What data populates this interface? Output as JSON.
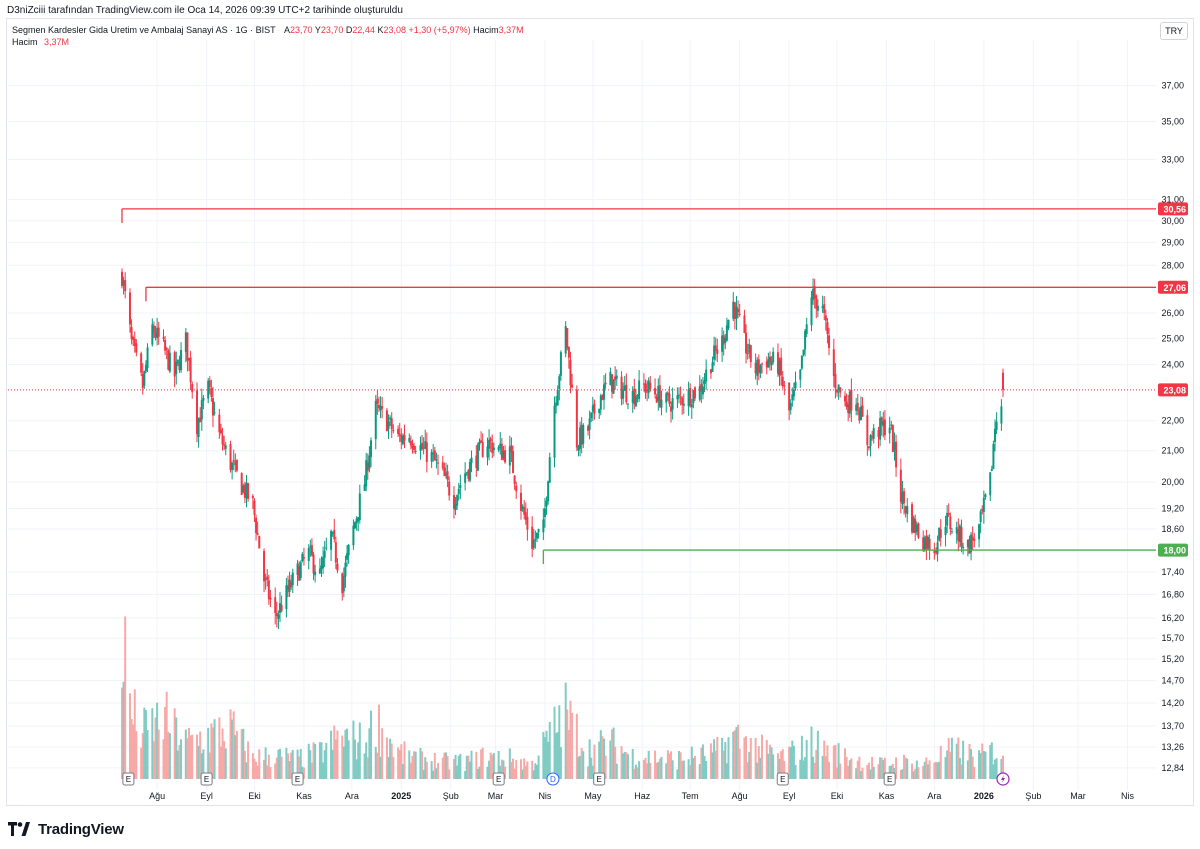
{
  "credit": "D3niZciii tarafından TradingView.com ile Oca 14, 2026 09:39 UTC+2 tarihinde oluşturuldu",
  "legend": {
    "symbol": "Segmen Kardesler Gida Uretim ve Ambalaj Sanayi AS · 1G · BIST",
    "open_label": "A",
    "open": "23,70",
    "high_label": "Y",
    "high": "23,70",
    "low_label": "D",
    "low": "22,44",
    "close_label": "K",
    "close": "23,08",
    "change": "+1,30 (+5,97%)",
    "volume_label": "Hacim",
    "volume": "3,37M",
    "volume_series_label": "Hacim",
    "volume_series_value": "3,37M"
  },
  "currency": "TRY",
  "brand": "TradingView",
  "colors": {
    "up": "#089981",
    "down": "#f23645",
    "resistance": "#f23645",
    "support": "#4caf50",
    "grid": "#f0f3fa",
    "vol_up": "#80cbc4",
    "vol_down": "#f7a9a7"
  },
  "chart_data": {
    "type": "candlestick",
    "x_axis_labels": [
      "Ağu",
      "Eyl",
      "Eki",
      "Kas",
      "Ara",
      "2025",
      "Şub",
      "Mar",
      "Nis",
      "May",
      "Haz",
      "Tem",
      "Ağu",
      "Eyl",
      "Eki",
      "Kas",
      "Ara",
      "2026",
      "Şub",
      "Mar",
      "Nis"
    ],
    "y_axis_labels": [
      "37,00",
      "35,00",
      "33,00",
      "31,00",
      "30,00",
      "29,00",
      "28,00",
      "26,00",
      "25,00",
      "24,00",
      "22,00",
      "21,00",
      "20,00",
      "19,20",
      "18,60",
      "17,40",
      "16,80",
      "16,20",
      "15,70",
      "15,20",
      "14,70",
      "14,20",
      "13,70",
      "13,26",
      "12,84"
    ],
    "price_tags": [
      {
        "value": 30.56,
        "label": "30,56",
        "color": "#f23645"
      },
      {
        "value": 27.06,
        "label": "27,06",
        "color": "#f23645"
      },
      {
        "value": 23.08,
        "label": "23,08",
        "color": "#f23645"
      },
      {
        "value": 18.0,
        "label": "18,00",
        "color": "#4caf50"
      }
    ],
    "horizontal_lines": [
      {
        "name": "resistance-1",
        "value": 30.56,
        "from": "2024-07-10"
      },
      {
        "name": "resistance-2",
        "value": 27.06,
        "from": "2024-07-25"
      },
      {
        "name": "support",
        "value": 18.0,
        "from": "2025-03-31"
      }
    ],
    "scale": "log",
    "ylim": [
      12.6,
      38.5
    ],
    "price_path": [
      [
        "2024-07-10",
        27.6
      ],
      [
        "2024-07-16",
        24.8
      ],
      [
        "2024-07-23",
        23.2
      ],
      [
        "2024-07-29",
        25.4
      ],
      [
        "2024-08-05",
        24.6
      ],
      [
        "2024-08-12",
        23.6
      ],
      [
        "2024-08-19",
        24.9
      ],
      [
        "2024-08-26",
        21.9
      ],
      [
        "2024-09-02",
        23.1
      ],
      [
        "2024-09-09",
        21.5
      ],
      [
        "2024-09-16",
        20.6
      ],
      [
        "2024-09-23",
        19.9
      ],
      [
        "2024-09-30",
        19.3
      ],
      [
        "2024-10-07",
        17.2
      ],
      [
        "2024-10-14",
        16.2
      ],
      [
        "2024-10-21",
        16.8
      ],
      [
        "2024-10-28",
        17.4
      ],
      [
        "2024-11-04",
        17.9
      ],
      [
        "2024-11-11",
        17.3
      ],
      [
        "2024-11-18",
        18.4
      ],
      [
        "2024-11-25",
        17.1
      ],
      [
        "2024-12-02",
        18.6
      ],
      [
        "2024-12-09",
        20.0
      ],
      [
        "2024-12-16",
        22.4
      ],
      [
        "2024-12-23",
        22.0
      ],
      [
        "2024-12-30",
        21.4
      ],
      [
        "2025-01-06",
        21.5
      ],
      [
        "2025-01-13",
        21.1
      ],
      [
        "2025-01-20",
        20.8
      ],
      [
        "2025-01-27",
        20.2
      ],
      [
        "2025-02-03",
        19.5
      ],
      [
        "2025-02-10",
        20.3
      ],
      [
        "2025-02-17",
        20.8
      ],
      [
        "2025-02-24",
        21.3
      ],
      [
        "2025-03-03",
        21.0
      ],
      [
        "2025-03-10",
        20.9
      ],
      [
        "2025-03-17",
        19.3
      ],
      [
        "2025-03-24",
        18.2
      ],
      [
        "2025-03-31",
        18.6
      ],
      [
        "2025-04-07",
        22.6
      ],
      [
        "2025-04-14",
        25.3
      ],
      [
        "2025-04-21",
        21.3
      ],
      [
        "2025-04-28",
        21.7
      ],
      [
        "2025-05-05",
        22.8
      ],
      [
        "2025-05-12",
        23.4
      ],
      [
        "2025-05-19",
        23.1
      ],
      [
        "2025-05-26",
        22.9
      ],
      [
        "2025-06-02",
        23.2
      ],
      [
        "2025-06-09",
        23.0
      ],
      [
        "2025-06-16",
        22.6
      ],
      [
        "2025-06-23",
        22.7
      ],
      [
        "2025-06-30",
        22.9
      ],
      [
        "2025-07-07",
        23.1
      ],
      [
        "2025-07-14",
        24.1
      ],
      [
        "2025-07-21",
        24.9
      ],
      [
        "2025-07-28",
        26.4
      ],
      [
        "2025-08-04",
        24.8
      ],
      [
        "2025-08-11",
        23.8
      ],
      [
        "2025-08-18",
        24.2
      ],
      [
        "2025-08-25",
        24.0
      ],
      [
        "2025-09-01",
        22.3
      ],
      [
        "2025-09-08",
        23.6
      ],
      [
        "2025-09-15",
        26.8
      ],
      [
        "2025-09-22",
        26.1
      ],
      [
        "2025-09-29",
        23.5
      ],
      [
        "2025-10-06",
        22.6
      ],
      [
        "2025-10-13",
        22.8
      ],
      [
        "2025-10-20",
        21.3
      ],
      [
        "2025-10-27",
        21.7
      ],
      [
        "2025-11-03",
        21.9
      ],
      [
        "2025-11-10",
        19.6
      ],
      [
        "2025-11-17",
        18.8
      ],
      [
        "2025-11-24",
        18.3
      ],
      [
        "2025-12-01",
        18.1
      ],
      [
        "2025-12-08",
        18.9
      ],
      [
        "2025-12-15",
        18.5
      ],
      [
        "2025-12-22",
        18.1
      ],
      [
        "2025-12-29",
        18.6
      ],
      [
        "2026-01-05",
        20.0
      ],
      [
        "2026-01-08",
        21.8
      ],
      [
        "2026-01-13",
        23.08
      ]
    ],
    "volume": {
      "ylim_fraction": [
        0,
        1
      ],
      "path": [
        [
          "2024-07-10",
          1.0
        ],
        [
          "2024-07-16",
          0.45
        ],
        [
          "2024-07-23",
          0.32
        ],
        [
          "2024-08-05",
          0.42
        ],
        [
          "2024-08-19",
          0.25
        ],
        [
          "2024-09-02",
          0.3
        ],
        [
          "2024-09-16",
          0.35
        ],
        [
          "2024-09-30",
          0.15
        ],
        [
          "2024-10-14",
          0.16
        ],
        [
          "2024-10-28",
          0.14
        ],
        [
          "2024-11-11",
          0.18
        ],
        [
          "2024-11-25",
          0.3
        ],
        [
          "2024-12-09",
          0.25
        ],
        [
          "2024-12-16",
          0.4
        ],
        [
          "2024-12-30",
          0.18
        ],
        [
          "2025-01-13",
          0.14
        ],
        [
          "2025-01-27",
          0.12
        ],
        [
          "2025-02-10",
          0.12
        ],
        [
          "2025-02-24",
          0.16
        ],
        [
          "2025-03-10",
          0.14
        ],
        [
          "2025-03-24",
          0.1
        ],
        [
          "2025-04-07",
          0.35
        ],
        [
          "2025-04-14",
          0.45
        ],
        [
          "2025-04-28",
          0.2
        ],
        [
          "2025-05-12",
          0.25
        ],
        [
          "2025-05-26",
          0.16
        ],
        [
          "2025-06-09",
          0.15
        ],
        [
          "2025-06-23",
          0.14
        ],
        [
          "2025-07-07",
          0.16
        ],
        [
          "2025-07-21",
          0.2
        ],
        [
          "2025-07-28",
          0.3
        ],
        [
          "2025-08-11",
          0.22
        ],
        [
          "2025-08-25",
          0.15
        ],
        [
          "2025-09-08",
          0.2
        ],
        [
          "2025-09-15",
          0.25
        ],
        [
          "2025-09-29",
          0.18
        ],
        [
          "2025-10-13",
          0.13
        ],
        [
          "2025-10-27",
          0.1
        ],
        [
          "2025-11-10",
          0.12
        ],
        [
          "2025-11-24",
          0.1
        ],
        [
          "2025-12-08",
          0.18
        ],
        [
          "2025-12-15",
          0.2
        ],
        [
          "2025-12-29",
          0.15
        ],
        [
          "2026-01-08",
          0.2
        ],
        [
          "2026-01-13",
          0.18
        ]
      ]
    },
    "events": [
      {
        "date": "2024-07-14",
        "kind": "E"
      },
      {
        "date": "2024-09-01",
        "kind": "E"
      },
      {
        "date": "2024-10-28",
        "kind": "E"
      },
      {
        "date": "2025-03-03",
        "kind": "E"
      },
      {
        "date": "2025-04-06",
        "kind": "D"
      },
      {
        "date": "2025-05-05",
        "kind": "E"
      },
      {
        "date": "2025-08-28",
        "kind": "E"
      },
      {
        "date": "2025-11-03",
        "kind": "E"
      }
    ],
    "flash_marker_date": "2026-01-13"
  }
}
